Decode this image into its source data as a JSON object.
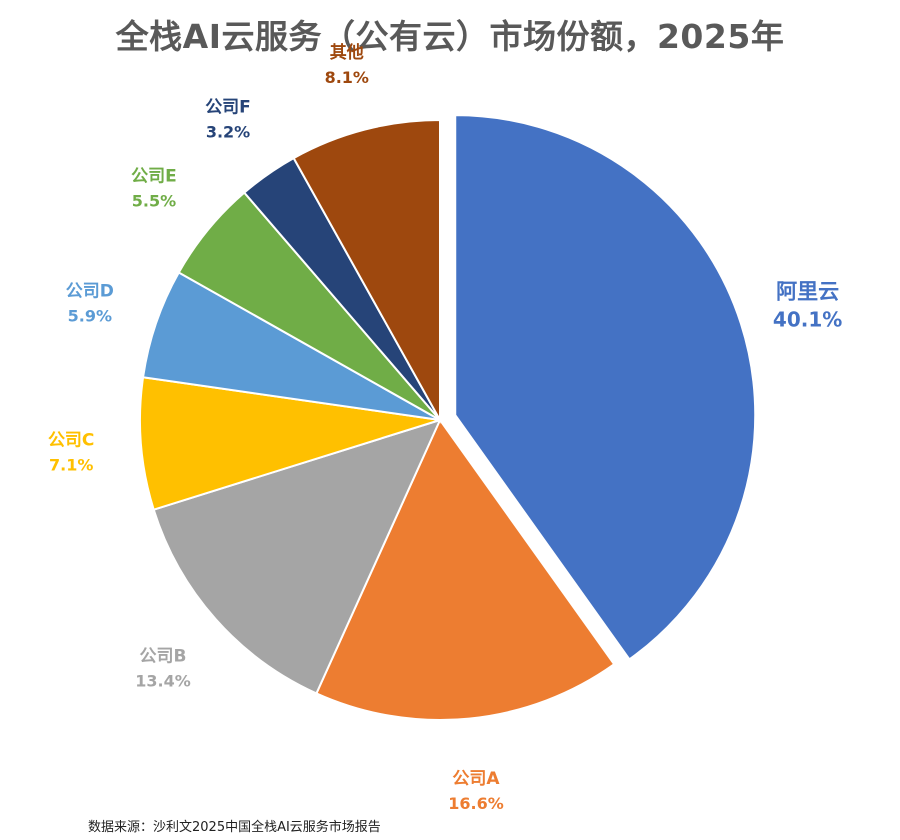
{
  "title": "全栈AI云服务（公有云）市场份额，2025年",
  "source": "数据来源：沙利文2025中国全栈AI云服务市场报告",
  "chart_data": {
    "type": "pie",
    "title": "全栈AI云服务（公有云）市场份额，2025年",
    "unit": "%",
    "exploded": [
      "阿里云"
    ],
    "slices": [
      {
        "name": "阿里云",
        "value": 40.1,
        "label": "40.1%",
        "color": "#4472C4"
      },
      {
        "name": "公司A",
        "value": 16.6,
        "label": "16.6%",
        "color": "#ED7D31"
      },
      {
        "name": "公司B",
        "value": 13.4,
        "label": "13.4%",
        "color": "#A5A5A5"
      },
      {
        "name": "公司C",
        "value": 7.1,
        "label": "7.1%",
        "color": "#FFC000"
      },
      {
        "name": "公司D",
        "value": 5.9,
        "label": "5.9%",
        "color": "#5B9BD5"
      },
      {
        "name": "公司E",
        "value": 5.5,
        "label": "5.5%",
        "color": "#70AD47"
      },
      {
        "name": "公司F",
        "value": 3.2,
        "label": "3.2%",
        "color": "#264478"
      },
      {
        "name": "其他",
        "value": 8.1,
        "label": "8.1%",
        "color": "#9E480E"
      }
    ]
  }
}
